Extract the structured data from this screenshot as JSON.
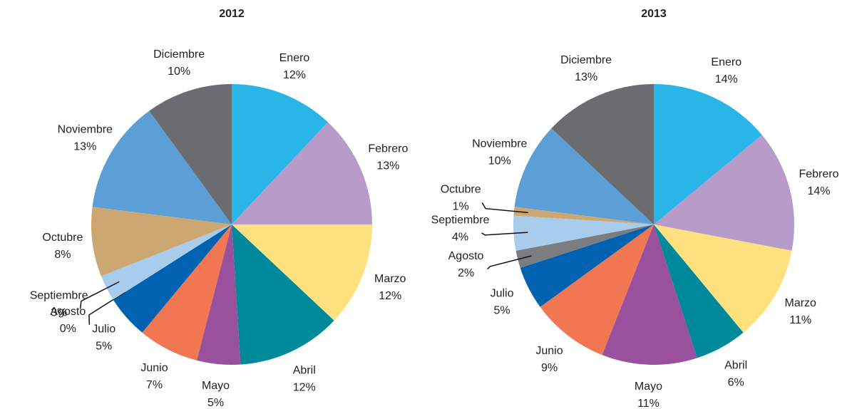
{
  "chart_data": [
    {
      "type": "pie",
      "title": "2012",
      "categories": [
        "Enero",
        "Febrero",
        "Marzo",
        "Abril",
        "Mayo",
        "Junio",
        "Julio",
        "Agosto",
        "Septiembre",
        "Octubre",
        "Noviembre",
        "Diciembre"
      ],
      "values": [
        12,
        13,
        12,
        12,
        5,
        7,
        5,
        0,
        3,
        8,
        13,
        10
      ],
      "value_labels": [
        "12%",
        "13%",
        "12%",
        "12%",
        "5%",
        "7%",
        "5%",
        "0%",
        "3%",
        "8%",
        "13%",
        "10%"
      ],
      "colors": [
        "#29b5e8",
        "#b79bc9",
        "#fde17f",
        "#00899a",
        "#99519e",
        "#f07751",
        "#0062b1",
        "#7c7d80",
        "#a8cdec",
        "#cda772",
        "#5c9fd6",
        "#6b6c70"
      ]
    },
    {
      "type": "pie",
      "title": "2013",
      "categories": [
        "Enero",
        "Febrero",
        "Marzo",
        "Abril",
        "Mayo",
        "Junio",
        "Julio",
        "Agosto",
        "Septiembre",
        "Octubre",
        "Noviembre",
        "Diciembre"
      ],
      "values": [
        14,
        14,
        11,
        6,
        11,
        9,
        5,
        2,
        4,
        1,
        10,
        13
      ],
      "value_labels": [
        "14%",
        "14%",
        "11%",
        "6%",
        "11%",
        "9%",
        "5%",
        "2%",
        "4%",
        "1%",
        "10%",
        "13%"
      ],
      "colors": [
        "#29b5e8",
        "#b79bc9",
        "#fde17f",
        "#00899a",
        "#99519e",
        "#f07751",
        "#0062b1",
        "#7c7d80",
        "#a8cdec",
        "#cda772",
        "#5c9fd6",
        "#6b6c70"
      ]
    }
  ]
}
